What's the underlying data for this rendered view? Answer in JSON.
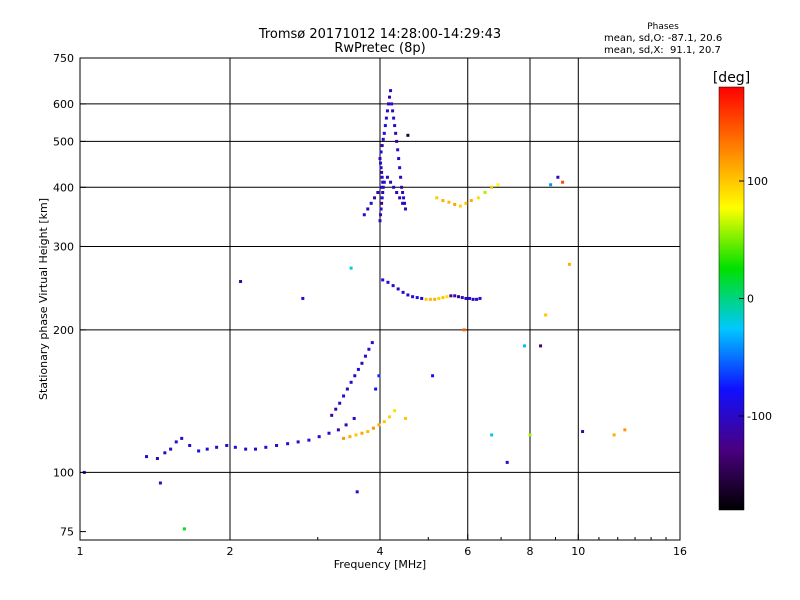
{
  "chart_data": {
    "type": "scatter",
    "title": "Tromsø 20171012 14:28:00-14:29:43",
    "subtitle": "RwPretec (8p)",
    "xlabel": "Frequency [MHz]",
    "ylabel": "Stationary phase Virtual Height [km]",
    "x_scale": "log2",
    "y_scale": "log",
    "xlim": [
      1,
      16
    ],
    "ylim": [
      72,
      750
    ],
    "x_ticks": [
      1,
      2,
      4,
      6,
      8,
      10,
      16
    ],
    "y_ticks": [
      75,
      100,
      200,
      300,
      400,
      500,
      600,
      750
    ],
    "grid": true,
    "phases_header": "Phases",
    "phases_o": "mean, sd,O: -87.1, 20.6",
    "phases_x": "mean, sd,X:  91.1, 20.7",
    "colorbar": {
      "label": "[deg]",
      "range": [
        -180,
        180
      ],
      "ticks": [
        -100,
        0,
        100
      ],
      "colors": [
        "#000000",
        "#4a0080",
        "#1010ff",
        "#00c8ff",
        "#00e000",
        "#ffff00",
        "#ff8000",
        "#ff0000"
      ]
    },
    "series": [
      {
        "name": "",
        "x": [
          1.02,
          1.36,
          1.43,
          1.48,
          1.52,
          1.56,
          1.6,
          1.66,
          1.73,
          1.8,
          1.88,
          1.97,
          2.05,
          2.15,
          2.25,
          2.36,
          2.48,
          2.61,
          2.74,
          2.88,
          3.02,
          3.16,
          3.3,
          3.42,
          3.55
        ],
        "y": [
          100,
          108,
          107,
          110,
          112,
          116,
          118,
          114,
          111,
          112,
          113,
          114,
          113,
          112,
          112,
          113,
          114,
          115,
          116,
          117,
          119,
          121,
          123,
          126,
          130
        ],
        "phase": [
          -100,
          -95,
          -110,
          -105,
          -100,
          -90,
          -95,
          -100,
          -85,
          -95,
          -100,
          -95,
          -90,
          -100,
          -95,
          -90,
          -95,
          -100,
          -90,
          -95,
          -100,
          -95,
          -110,
          -105,
          -100
        ]
      },
      {
        "name": "",
        "x": [
          3.38,
          3.48,
          3.58,
          3.68,
          3.78,
          3.88,
          3.98,
          4.08,
          4.18,
          4.28
        ],
        "y": [
          118,
          119,
          120,
          121,
          122,
          124,
          126,
          128,
          131,
          135
        ],
        "phase": [
          120,
          110,
          100,
          115,
          105,
          120,
          110,
          100,
          95,
          90
        ]
      },
      {
        "name": "",
        "x": [
          3.2,
          3.26,
          3.32,
          3.38,
          3.44,
          3.5,
          3.56,
          3.62,
          3.68,
          3.74,
          3.8,
          3.86,
          3.92,
          3.98
        ],
        "y": [
          132,
          136,
          140,
          145,
          150,
          155,
          160,
          165,
          170,
          176,
          182,
          188,
          150,
          160
        ],
        "phase": [
          -120,
          -110,
          -100,
          -90,
          -105,
          -95,
          -100,
          -85,
          -110,
          -95,
          -100,
          -90,
          -80,
          -70
        ]
      },
      {
        "name": "",
        "x": [
          4.0,
          4.01,
          4.02,
          4.03,
          4.04,
          4.05,
          4.06,
          4.05,
          4.04,
          4.03,
          4.02,
          4.01,
          4.0,
          4.02,
          4.04,
          4.06,
          4.08,
          4.1,
          4.12,
          4.14,
          4.16,
          4.18,
          4.2,
          4.22,
          4.24,
          4.26,
          4.28,
          4.3,
          4.32,
          4.34,
          4.36,
          4.38,
          4.4,
          4.42,
          4.44,
          4.46,
          4.48,
          4.5
        ],
        "y": [
          340,
          350,
          360,
          370,
          380,
          390,
          400,
          410,
          420,
          430,
          440,
          450,
          460,
          475,
          490,
          505,
          520,
          540,
          560,
          580,
          600,
          620,
          640,
          600,
          580,
          560,
          540,
          520,
          500,
          480,
          460,
          440,
          420,
          400,
          390,
          380,
          370,
          360
        ],
        "phase": [
          -100,
          -110,
          -95,
          -120,
          -90,
          -105,
          -100,
          -115,
          -95,
          -110,
          -100,
          -90,
          -105,
          -95,
          -110,
          -100,
          -90,
          -85,
          -100,
          -95,
          -110,
          -120,
          -100,
          -90,
          -105,
          -95,
          -100,
          -110,
          -115,
          -90,
          -100,
          -95,
          -105,
          -110,
          -100,
          -90,
          -95,
          -100
        ]
      },
      {
        "name": "",
        "x": [
          3.72,
          3.78,
          3.84,
          3.9,
          3.96,
          4.02,
          4.08,
          4.14,
          4.2,
          4.26,
          4.32,
          4.38,
          4.44
        ],
        "y": [
          350,
          360,
          370,
          380,
          390,
          400,
          410,
          420,
          410,
          400,
          390,
          380,
          370
        ],
        "phase": [
          -100,
          -110,
          -95,
          -120,
          -105,
          -100,
          -90,
          -100,
          -110,
          -95,
          -105,
          -115,
          -100
        ]
      },
      {
        "name": "",
        "x": [
          5.2,
          5.35,
          5.5,
          5.65,
          5.8,
          5.95,
          6.1,
          6.3,
          6.5,
          6.7,
          6.9
        ],
        "y": [
          380,
          375,
          372,
          368,
          365,
          370,
          375,
          380,
          390,
          400,
          405
        ],
        "phase": [
          100,
          110,
          105,
          115,
          95,
          100,
          110,
          90,
          60,
          100,
          80
        ]
      },
      {
        "name": "",
        "x": [
          4.05,
          4.15,
          4.25,
          4.35,
          4.45,
          4.55,
          4.65,
          4.75,
          4.85,
          4.95,
          5.05,
          5.15,
          5.25,
          5.35,
          5.45,
          5.55,
          5.65,
          5.75,
          5.85,
          5.95,
          6.05,
          6.15,
          6.25,
          6.35
        ],
        "y": [
          255,
          252,
          248,
          244,
          240,
          237,
          235,
          234,
          233,
          232,
          232,
          232,
          233,
          234,
          235,
          236,
          236,
          235,
          234,
          233,
          233,
          232,
          232,
          233
        ],
        "phase": [
          -90,
          -95,
          -100,
          -105,
          -95,
          -100,
          -90,
          -85,
          -95,
          100,
          105,
          110,
          95,
          100,
          90,
          -120,
          -110,
          -130,
          -100,
          -95,
          -90,
          -110,
          -100,
          -95
        ]
      },
      {
        "name": "",
        "x": [
          1.45,
          1.62,
          2.1,
          2.8,
          3.5,
          3.6,
          4.5,
          4.55,
          5.1,
          5.9,
          6.7,
          7.2,
          7.8,
          8.0,
          8.4,
          8.6,
          8.8,
          9.1,
          9.3,
          9.6,
          10.2,
          11.8,
          12.4
        ],
        "y": [
          95,
          76,
          253,
          233,
          270,
          91,
          130,
          515,
          160,
          200,
          120,
          105,
          185,
          120,
          185,
          215,
          405,
          420,
          410,
          275,
          122,
          120,
          123
        ],
        "phase": [
          -100,
          20,
          -110,
          -95,
          -20,
          -100,
          100,
          -160,
          -80,
          140,
          -20,
          -100,
          -30,
          60,
          -130,
          100,
          -40,
          -100,
          150,
          110,
          -110,
          110,
          120
        ]
      }
    ]
  }
}
